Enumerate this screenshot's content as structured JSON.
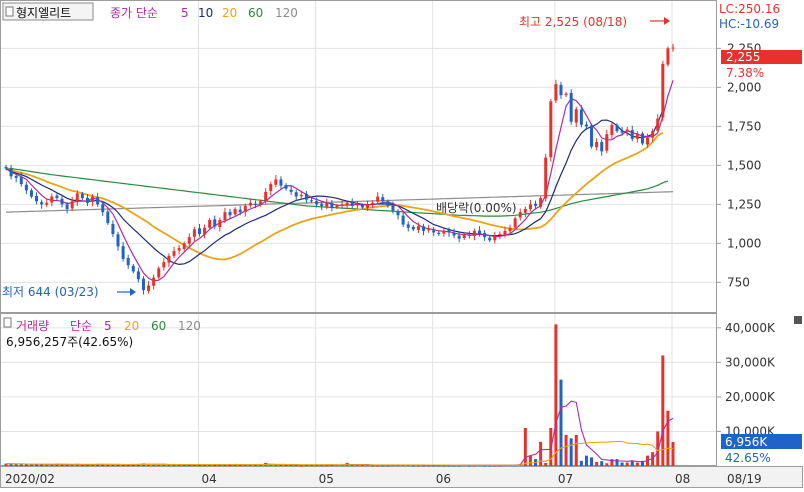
{
  "header": {
    "stock_name": "형지엘리트",
    "ma_label": "종가 단순",
    "ma_periods": [
      "5",
      "10",
      "20",
      "60",
      "120"
    ]
  },
  "volume_header": {
    "title": "거래량",
    "ma_label": "단순",
    "ma_periods": [
      "5",
      "20",
      "60",
      "120"
    ],
    "current_value": "6,956,257주(42.65%)"
  },
  "right_panel": {
    "lc": "LC:250.16",
    "hc": "HC:-10.69",
    "price_tag": "2,255",
    "change_pct": "7.38%",
    "vol_tag": "6,956K",
    "vol_pct": "42.65%"
  },
  "annotations": {
    "high": "최고 2,525 (08/18)",
    "low": "최저 644 (03/23)",
    "dividend": "배당락(0.00%)"
  },
  "colors": {
    "up": "#e8312a",
    "down": "#1f62c8",
    "ma5": "#b02aa6",
    "ma10": "#1c2a78",
    "ma20": "#e8a516",
    "ma60": "#2b8a3e",
    "ma120": "#8c8c8c",
    "grid": "#e2e2e2",
    "axis_text": "#333333"
  },
  "chart_data": [
    {
      "type": "candlestick",
      "title": "형지엘리트",
      "y_ticks": [
        750,
        1000,
        1250,
        1500,
        1750,
        2000,
        2250
      ],
      "ylim": [
        560,
        2560
      ],
      "x_ticks": [
        "2020/02",
        "04",
        "05",
        "06",
        "07",
        "08",
        "08/19"
      ],
      "close": [
        1480,
        1430,
        1420,
        1380,
        1340,
        1300,
        1270,
        1250,
        1260,
        1300,
        1290,
        1250,
        1220,
        1270,
        1320,
        1290,
        1260,
        1300,
        1250,
        1200,
        1130,
        1060,
        980,
        900,
        860,
        820,
        770,
        700,
        730,
        780,
        840,
        880,
        920,
        950,
        970,
        1000,
        1040,
        1090,
        1060,
        1100,
        1150,
        1110,
        1150,
        1200,
        1180,
        1220,
        1200,
        1240,
        1260,
        1250,
        1270,
        1330,
        1380,
        1410,
        1370,
        1350,
        1330,
        1300,
        1310,
        1280,
        1270,
        1250,
        1240,
        1260,
        1230,
        1240,
        1250,
        1260,
        1240,
        1250,
        1230,
        1250,
        1260,
        1300,
        1270,
        1240,
        1210,
        1180,
        1120,
        1100,
        1090,
        1110,
        1080,
        1090,
        1070,
        1060,
        1080,
        1070,
        1050,
        1030,
        1060,
        1050,
        1080,
        1060,
        1040,
        1020,
        1050,
        1060,
        1080,
        1100,
        1160,
        1200,
        1220,
        1250,
        1240,
        1290,
        1550,
        1910,
        2020,
        1950,
        1960,
        1780,
        1860,
        1760,
        1750,
        1620,
        1650,
        1590,
        1700,
        1760,
        1720,
        1710,
        1730,
        1670,
        1700,
        1640,
        1680,
        1720,
        1800,
        2150,
        2250,
        2255
      ],
      "volume_k": [
        700,
        600,
        500,
        600,
        500,
        400,
        600,
        500,
        400,
        300,
        700,
        500,
        400,
        300,
        500,
        400,
        300,
        500,
        600,
        500,
        400,
        300,
        500,
        400,
        300,
        600,
        500,
        700,
        400,
        300,
        500,
        600,
        300,
        400,
        300,
        300,
        500,
        400,
        400,
        300,
        500,
        400,
        300,
        400,
        300,
        600,
        400,
        300,
        500,
        300,
        400,
        900,
        400,
        300,
        300,
        400,
        300,
        300,
        200,
        300,
        300,
        300,
        300,
        400,
        300,
        300,
        300,
        900,
        400,
        300,
        300,
        300,
        200,
        200,
        200,
        200,
        300,
        400,
        300,
        300,
        200,
        200,
        200,
        200,
        200,
        200,
        200,
        200,
        200,
        200,
        300,
        200,
        200,
        300,
        200,
        200,
        200,
        200,
        300,
        400,
        300,
        500,
        11000,
        3000,
        2000,
        7000,
        900,
        11000,
        41000,
        25000,
        9000,
        8000,
        9000,
        1500,
        3000,
        2500,
        1200,
        1400,
        800,
        2000,
        2000,
        1000,
        1000,
        1500,
        1000,
        1500,
        3000,
        4000,
        10000,
        32000,
        16000,
        6956
      ],
      "ma5": [
        1480,
        1455,
        1443,
        1428,
        1410,
        1374,
        1342,
        1308,
        1284,
        1276,
        1274,
        1270,
        1254,
        1262,
        1270,
        1270,
        1272,
        1288,
        1284,
        1260,
        1228,
        1189,
        1124,
        1054,
        986,
        924,
        866,
        810,
        776,
        760,
        764,
        786,
        830,
        874,
        912,
        944,
        976,
        1010,
        1032,
        1058,
        1090,
        1112,
        1132,
        1142,
        1158,
        1172,
        1190,
        1208,
        1220,
        1234,
        1248,
        1270,
        1298,
        1324,
        1346,
        1368,
        1370,
        1352,
        1332,
        1314,
        1292,
        1282,
        1270,
        1260,
        1252,
        1244,
        1244,
        1246,
        1246,
        1250,
        1246,
        1248,
        1248,
        1254,
        1262,
        1264,
        1256,
        1238,
        1206,
        1170,
        1140,
        1120,
        1100,
        1094,
        1088,
        1080,
        1078,
        1074,
        1068,
        1058,
        1058,
        1052,
        1054,
        1058,
        1058,
        1050,
        1044,
        1044,
        1052,
        1062,
        1088,
        1120,
        1152,
        1194,
        1222,
        1240,
        1310,
        1446,
        1602,
        1744,
        1880,
        1928,
        1914,
        1876,
        1820,
        1760,
        1726,
        1676,
        1664,
        1664,
        1686,
        1696,
        1724,
        1708,
        1702,
        1686,
        1686,
        1682,
        1708,
        1814,
        1944,
        2045
      ],
      "ma10": [
        1480,
        1460,
        1450,
        1440,
        1428,
        1410,
        1392,
        1374,
        1358,
        1343,
        1324,
        1308,
        1289,
        1277,
        1275,
        1272,
        1270,
        1271,
        1276,
        1268,
        1251,
        1229,
        1198,
        1157,
        1124,
        1093,
        1064,
        1031,
        1001,
        970,
        943,
        919,
        891,
        874,
        865,
        869,
        883,
        906,
        931,
        953,
        981,
        1007,
        1030,
        1052,
        1068,
        1089,
        1106,
        1124,
        1140,
        1152,
        1167,
        1180,
        1198,
        1216,
        1232,
        1246,
        1262,
        1275,
        1283,
        1291,
        1298,
        1303,
        1303,
        1300,
        1295,
        1289,
        1279,
        1271,
        1263,
        1256,
        1250,
        1248,
        1250,
        1252,
        1253,
        1253,
        1250,
        1240,
        1226,
        1210,
        1192,
        1176,
        1160,
        1140,
        1120,
        1110,
        1098,
        1088,
        1080,
        1073,
        1068,
        1064,
        1061,
        1059,
        1055,
        1050,
        1050,
        1050,
        1053,
        1056,
        1062,
        1076,
        1093,
        1116,
        1138,
        1158,
        1202,
        1278,
        1364,
        1442,
        1515,
        1597,
        1659,
        1706,
        1735,
        1747,
        1763,
        1789,
        1790,
        1778,
        1754,
        1722,
        1706,
        1687,
        1680,
        1678,
        1686,
        1700,
        1770,
        1854
      ],
      "ma20": [
        1480,
        1470,
        1460,
        1452,
        1444,
        1434,
        1422,
        1409,
        1396,
        1384,
        1372,
        1360,
        1347,
        1337,
        1330,
        1321,
        1311,
        1302,
        1296,
        1288,
        1276,
        1263,
        1248,
        1231,
        1212,
        1192,
        1172,
        1152,
        1131,
        1106,
        1087,
        1067,
        1049,
        1028,
        1008,
        988,
        971,
        955,
        939,
        923,
        911,
        902,
        897,
        898,
        905,
        917,
        932,
        951,
        970,
        990,
        1008,
        1027,
        1047,
        1066,
        1081,
        1096,
        1111,
        1125,
        1137,
        1147,
        1157,
        1165,
        1171,
        1178,
        1185,
        1192,
        1198,
        1205,
        1210,
        1216,
        1220,
        1226,
        1231,
        1235,
        1239,
        1242,
        1245,
        1244,
        1240,
        1235,
        1229,
        1224,
        1218,
        1212,
        1204,
        1198,
        1190,
        1182,
        1174,
        1167,
        1161,
        1154,
        1146,
        1138,
        1130,
        1121,
        1114,
        1107,
        1100,
        1094,
        1090,
        1089,
        1091,
        1094,
        1097,
        1104,
        1123,
        1154,
        1192,
        1229,
        1262,
        1293,
        1323,
        1352,
        1379,
        1406,
        1432,
        1458,
        1482,
        1503,
        1520,
        1535,
        1548,
        1563,
        1578,
        1596,
        1618,
        1650,
        1690,
        1710
      ],
      "ma60": [
        1480,
        1480,
        1475,
        1470,
        1465,
        1460,
        1455,
        1450,
        1445,
        1440,
        1436,
        1432,
        1428,
        1424,
        1420,
        1416,
        1412,
        1408,
        1404,
        1400,
        1396,
        1392,
        1388,
        1384,
        1380,
        1376,
        1372,
        1368,
        1364,
        1360,
        1356,
        1352,
        1348,
        1344,
        1340,
        1336,
        1332,
        1328,
        1324,
        1320,
        1316,
        1312,
        1308,
        1304,
        1300,
        1296,
        1292,
        1288,
        1284,
        1280,
        1276,
        1272,
        1268,
        1264,
        1260,
        1256,
        1252,
        1248,
        1244,
        1240,
        1238,
        1236,
        1234,
        1232,
        1230,
        1228,
        1226,
        1224,
        1222,
        1220,
        1218,
        1216,
        1214,
        1212,
        1210,
        1208,
        1206,
        1204,
        1202,
        1200,
        1198,
        1196,
        1194,
        1192,
        1190,
        1188,
        1186,
        1184,
        1182,
        1180,
        1179,
        1178,
        1177,
        1176,
        1175,
        1175,
        1175,
        1175,
        1176,
        1177,
        1180,
        1184,
        1188,
        1192,
        1196,
        1200,
        1206,
        1214,
        1224,
        1234,
        1244,
        1254,
        1262,
        1270,
        1276,
        1282,
        1288,
        1294,
        1300,
        1306,
        1312,
        1318,
        1324,
        1330,
        1336,
        1342,
        1350,
        1360,
        1372,
        1388,
        1400
      ],
      "ma120": [
        1200,
        1201,
        1202,
        1203,
        1204,
        1205,
        1206,
        1207,
        1208,
        1209,
        1210,
        1211,
        1212,
        1213,
        1214,
        1215,
        1216,
        1217,
        1218,
        1219,
        1220,
        1221,
        1222,
        1223,
        1224,
        1225,
        1226,
        1227,
        1228,
        1229,
        1230,
        1231,
        1232,
        1233,
        1234,
        1235,
        1236,
        1237,
        1238,
        1239,
        1240,
        1241,
        1242,
        1243,
        1244,
        1245,
        1246,
        1247,
        1248,
        1249,
        1250,
        1251,
        1252,
        1253,
        1254,
        1255,
        1256,
        1257,
        1258,
        1259,
        1260,
        1261,
        1262,
        1263,
        1264,
        1265,
        1266,
        1267,
        1268,
        1269,
        1270,
        1271,
        1272,
        1273,
        1274,
        1275,
        1276,
        1277,
        1278,
        1279,
        1280,
        1281,
        1282,
        1283,
        1284,
        1285,
        1286,
        1287,
        1288,
        1289,
        1290,
        1291,
        1292,
        1293,
        1294,
        1295,
        1296,
        1297,
        1298,
        1299,
        1300,
        1301,
        1302,
        1303,
        1304,
        1305,
        1306,
        1307,
        1308,
        1309,
        1310,
        1311,
        1312,
        1313,
        1314,
        1315,
        1316,
        1317,
        1318,
        1319,
        1320,
        1321,
        1322,
        1323,
        1324,
        1325,
        1326,
        1327,
        1328,
        1329,
        1330,
        1331
      ],
      "volume_ticks": [
        "10,000K",
        "20,000K",
        "30,000K",
        "40,000K"
      ],
      "volume_ylim": [
        0,
        44000
      ]
    }
  ]
}
